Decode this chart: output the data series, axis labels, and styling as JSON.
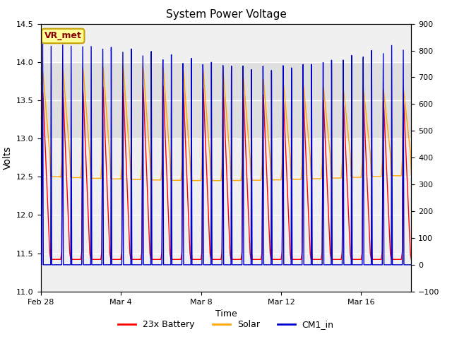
{
  "title": "System Power Voltage",
  "xlabel": "Time",
  "ylabel_left": "Volts",
  "ylim_left": [
    11.0,
    14.5
  ],
  "ylim_right": [
    -100,
    900
  ],
  "annotation_text": "VR_met",
  "annotation_color": "#8B0000",
  "annotation_box_facecolor": "#FFFF99",
  "annotation_box_edgecolor": "#C8A000",
  "x_tick_labels": [
    "Feb 28",
    "Mar 4",
    "Mar 8",
    "Mar 12",
    "Mar 16"
  ],
  "x_tick_positions": [
    0,
    4,
    8,
    12,
    16
  ],
  "yticks_left": [
    11.0,
    11.5,
    12.0,
    12.5,
    13.0,
    13.5,
    14.0,
    14.5
  ],
  "yticks_right": [
    -100,
    0,
    100,
    200,
    300,
    400,
    500,
    600,
    700,
    800,
    900
  ],
  "legend_labels": [
    "23x Battery",
    "Solar",
    "CM1_in"
  ],
  "legend_colors": [
    "#FF0000",
    "#FFA500",
    "#0000CD"
  ],
  "shaded_band_ymin": 13.0,
  "shaded_band_ymax": 14.0,
  "shaded_band_color": "#D8D8D8",
  "background_color": "#FFFFFF",
  "plot_bg_color": "#F0F0F0",
  "grid_color": "#FFFFFF",
  "total_days": 18.5,
  "xlim": [
    0,
    18.5
  ]
}
